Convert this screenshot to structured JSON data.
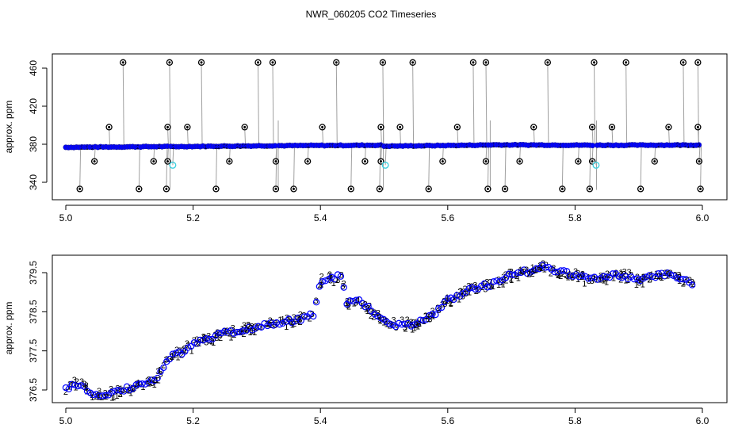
{
  "title": "NWR_060205  CO2 Timeseries",
  "colors": {
    "background": "#ffffff",
    "axis": "#000000",
    "drop_lines": "#a0a0a0",
    "outliers": "#000000",
    "flagged": "#40d0e0",
    "series_1": "#ff0000",
    "series_2": "#00c000",
    "series_3": "#0000ff"
  },
  "chart_data": [
    {
      "type": "scatter",
      "panel": "top",
      "ylabel": "approx. ppm",
      "xlabel": "",
      "xlim": [
        5.0,
        6.0
      ],
      "ylim": [
        330,
        470
      ],
      "x_ticks": [
        "5.0",
        "5.2",
        "5.4",
        "5.6",
        "5.8",
        "6.0"
      ],
      "y_ticks": [
        "340",
        "380",
        "420",
        "460"
      ],
      "grid": false,
      "baseline_segments": [
        {
          "x": [
            5.0,
            5.16
          ],
          "y": [
            376.8,
            377.6
          ]
        },
        {
          "x": [
            5.165,
            5.33
          ],
          "y": [
            377.5,
            378.5
          ]
        },
        {
          "x": [
            5.335,
            5.495
          ],
          "y": [
            378.5,
            379.0
          ]
        },
        {
          "x": [
            5.5,
            5.665
          ],
          "y": [
            378.0,
            379.2
          ]
        },
        {
          "x": [
            5.668,
            5.83
          ],
          "y": [
            379.4,
            379.0
          ]
        },
        {
          "x": [
            5.835,
            5.995
          ],
          "y": [
            379.0,
            379.2
          ]
        }
      ],
      "outliers_high": [
        {
          "x": 5.09,
          "y": 466
        },
        {
          "x": 5.163,
          "y": 466
        },
        {
          "x": 5.213,
          "y": 466
        },
        {
          "x": 5.302,
          "y": 466
        },
        {
          "x": 5.325,
          "y": 466
        },
        {
          "x": 5.425,
          "y": 466
        },
        {
          "x": 5.498,
          "y": 466
        },
        {
          "x": 5.545,
          "y": 466
        },
        {
          "x": 5.64,
          "y": 466
        },
        {
          "x": 5.66,
          "y": 466
        },
        {
          "x": 5.757,
          "y": 466
        },
        {
          "x": 5.83,
          "y": 466
        },
        {
          "x": 5.88,
          "y": 466
        },
        {
          "x": 5.97,
          "y": 466
        },
        {
          "x": 5.993,
          "y": 466
        },
        {
          "x": 5.068,
          "y": 398
        },
        {
          "x": 5.16,
          "y": 398
        },
        {
          "x": 5.191,
          "y": 398
        },
        {
          "x": 5.281,
          "y": 398
        },
        {
          "x": 5.403,
          "y": 398
        },
        {
          "x": 5.495,
          "y": 398
        },
        {
          "x": 5.525,
          "y": 398
        },
        {
          "x": 5.615,
          "y": 398
        },
        {
          "x": 5.735,
          "y": 398
        },
        {
          "x": 5.827,
          "y": 398
        },
        {
          "x": 5.858,
          "y": 398
        },
        {
          "x": 5.947,
          "y": 398
        },
        {
          "x": 5.993,
          "y": 398
        }
      ],
      "outliers_low": [
        {
          "x": 5.045,
          "y": 362
        },
        {
          "x": 5.138,
          "y": 362
        },
        {
          "x": 5.16,
          "y": 362
        },
        {
          "x": 5.257,
          "y": 362
        },
        {
          "x": 5.33,
          "y": 362
        },
        {
          "x": 5.38,
          "y": 362
        },
        {
          "x": 5.47,
          "y": 362
        },
        {
          "x": 5.495,
          "y": 362
        },
        {
          "x": 5.592,
          "y": 362
        },
        {
          "x": 5.66,
          "y": 362
        },
        {
          "x": 5.713,
          "y": 362
        },
        {
          "x": 5.805,
          "y": 362
        },
        {
          "x": 5.827,
          "y": 362
        },
        {
          "x": 5.925,
          "y": 362
        },
        {
          "x": 5.995,
          "y": 362
        },
        {
          "x": 5.022,
          "y": 333
        },
        {
          "x": 5.115,
          "y": 333
        },
        {
          "x": 5.158,
          "y": 333
        },
        {
          "x": 5.236,
          "y": 333
        },
        {
          "x": 5.33,
          "y": 333
        },
        {
          "x": 5.358,
          "y": 333
        },
        {
          "x": 5.448,
          "y": 333
        },
        {
          "x": 5.493,
          "y": 333
        },
        {
          "x": 5.57,
          "y": 333
        },
        {
          "x": 5.663,
          "y": 333
        },
        {
          "x": 5.69,
          "y": 333
        },
        {
          "x": 5.78,
          "y": 333
        },
        {
          "x": 5.823,
          "y": 333
        },
        {
          "x": 5.903,
          "y": 333
        },
        {
          "x": 5.997,
          "y": 333
        }
      ],
      "flagged": [
        {
          "x": 5.168,
          "y": 358
        },
        {
          "x": 5.502,
          "y": 358
        },
        {
          "x": 5.833,
          "y": 358
        }
      ]
    },
    {
      "type": "scatter",
      "panel": "bottom",
      "ylabel": "approx. ppm",
      "xlabel": "",
      "xlim": [
        5.0,
        6.0
      ],
      "ylim": [
        376.0,
        379.85
      ],
      "x_ticks": [
        "5.0",
        "5.2",
        "5.4",
        "5.6",
        "5.8",
        "6.0"
      ],
      "y_ticks": [
        "376.5",
        "377.5",
        "378.5",
        "379.5"
      ],
      "grid": false,
      "series_markers": [
        "1",
        "2",
        "3"
      ],
      "trend": {
        "x": [
          5.0,
          5.015,
          5.03,
          5.045,
          5.06,
          5.08,
          5.1,
          5.12,
          5.14,
          5.16,
          5.18,
          5.2,
          5.22,
          5.25,
          5.28,
          5.31,
          5.34,
          5.37,
          5.39,
          5.4,
          5.42,
          5.435,
          5.44,
          5.46,
          5.48,
          5.5,
          5.52,
          5.55,
          5.58,
          5.6,
          5.62,
          5.65,
          5.67,
          5.7,
          5.73,
          5.75,
          5.77,
          5.8,
          5.82,
          5.84,
          5.87,
          5.9,
          5.92,
          5.95,
          5.985
        ],
        "y": [
          376.55,
          376.65,
          376.55,
          376.4,
          376.3,
          376.45,
          376.55,
          376.65,
          376.75,
          377.3,
          377.45,
          377.65,
          377.8,
          377.95,
          378.05,
          378.15,
          378.25,
          378.3,
          378.45,
          379.3,
          379.35,
          379.45,
          378.7,
          378.85,
          378.5,
          378.3,
          378.15,
          378.2,
          378.45,
          378.8,
          378.95,
          379.15,
          379.2,
          379.45,
          379.55,
          379.65,
          379.55,
          379.45,
          379.35,
          379.35,
          379.45,
          379.3,
          379.4,
          379.45,
          379.2
        ]
      }
    }
  ]
}
